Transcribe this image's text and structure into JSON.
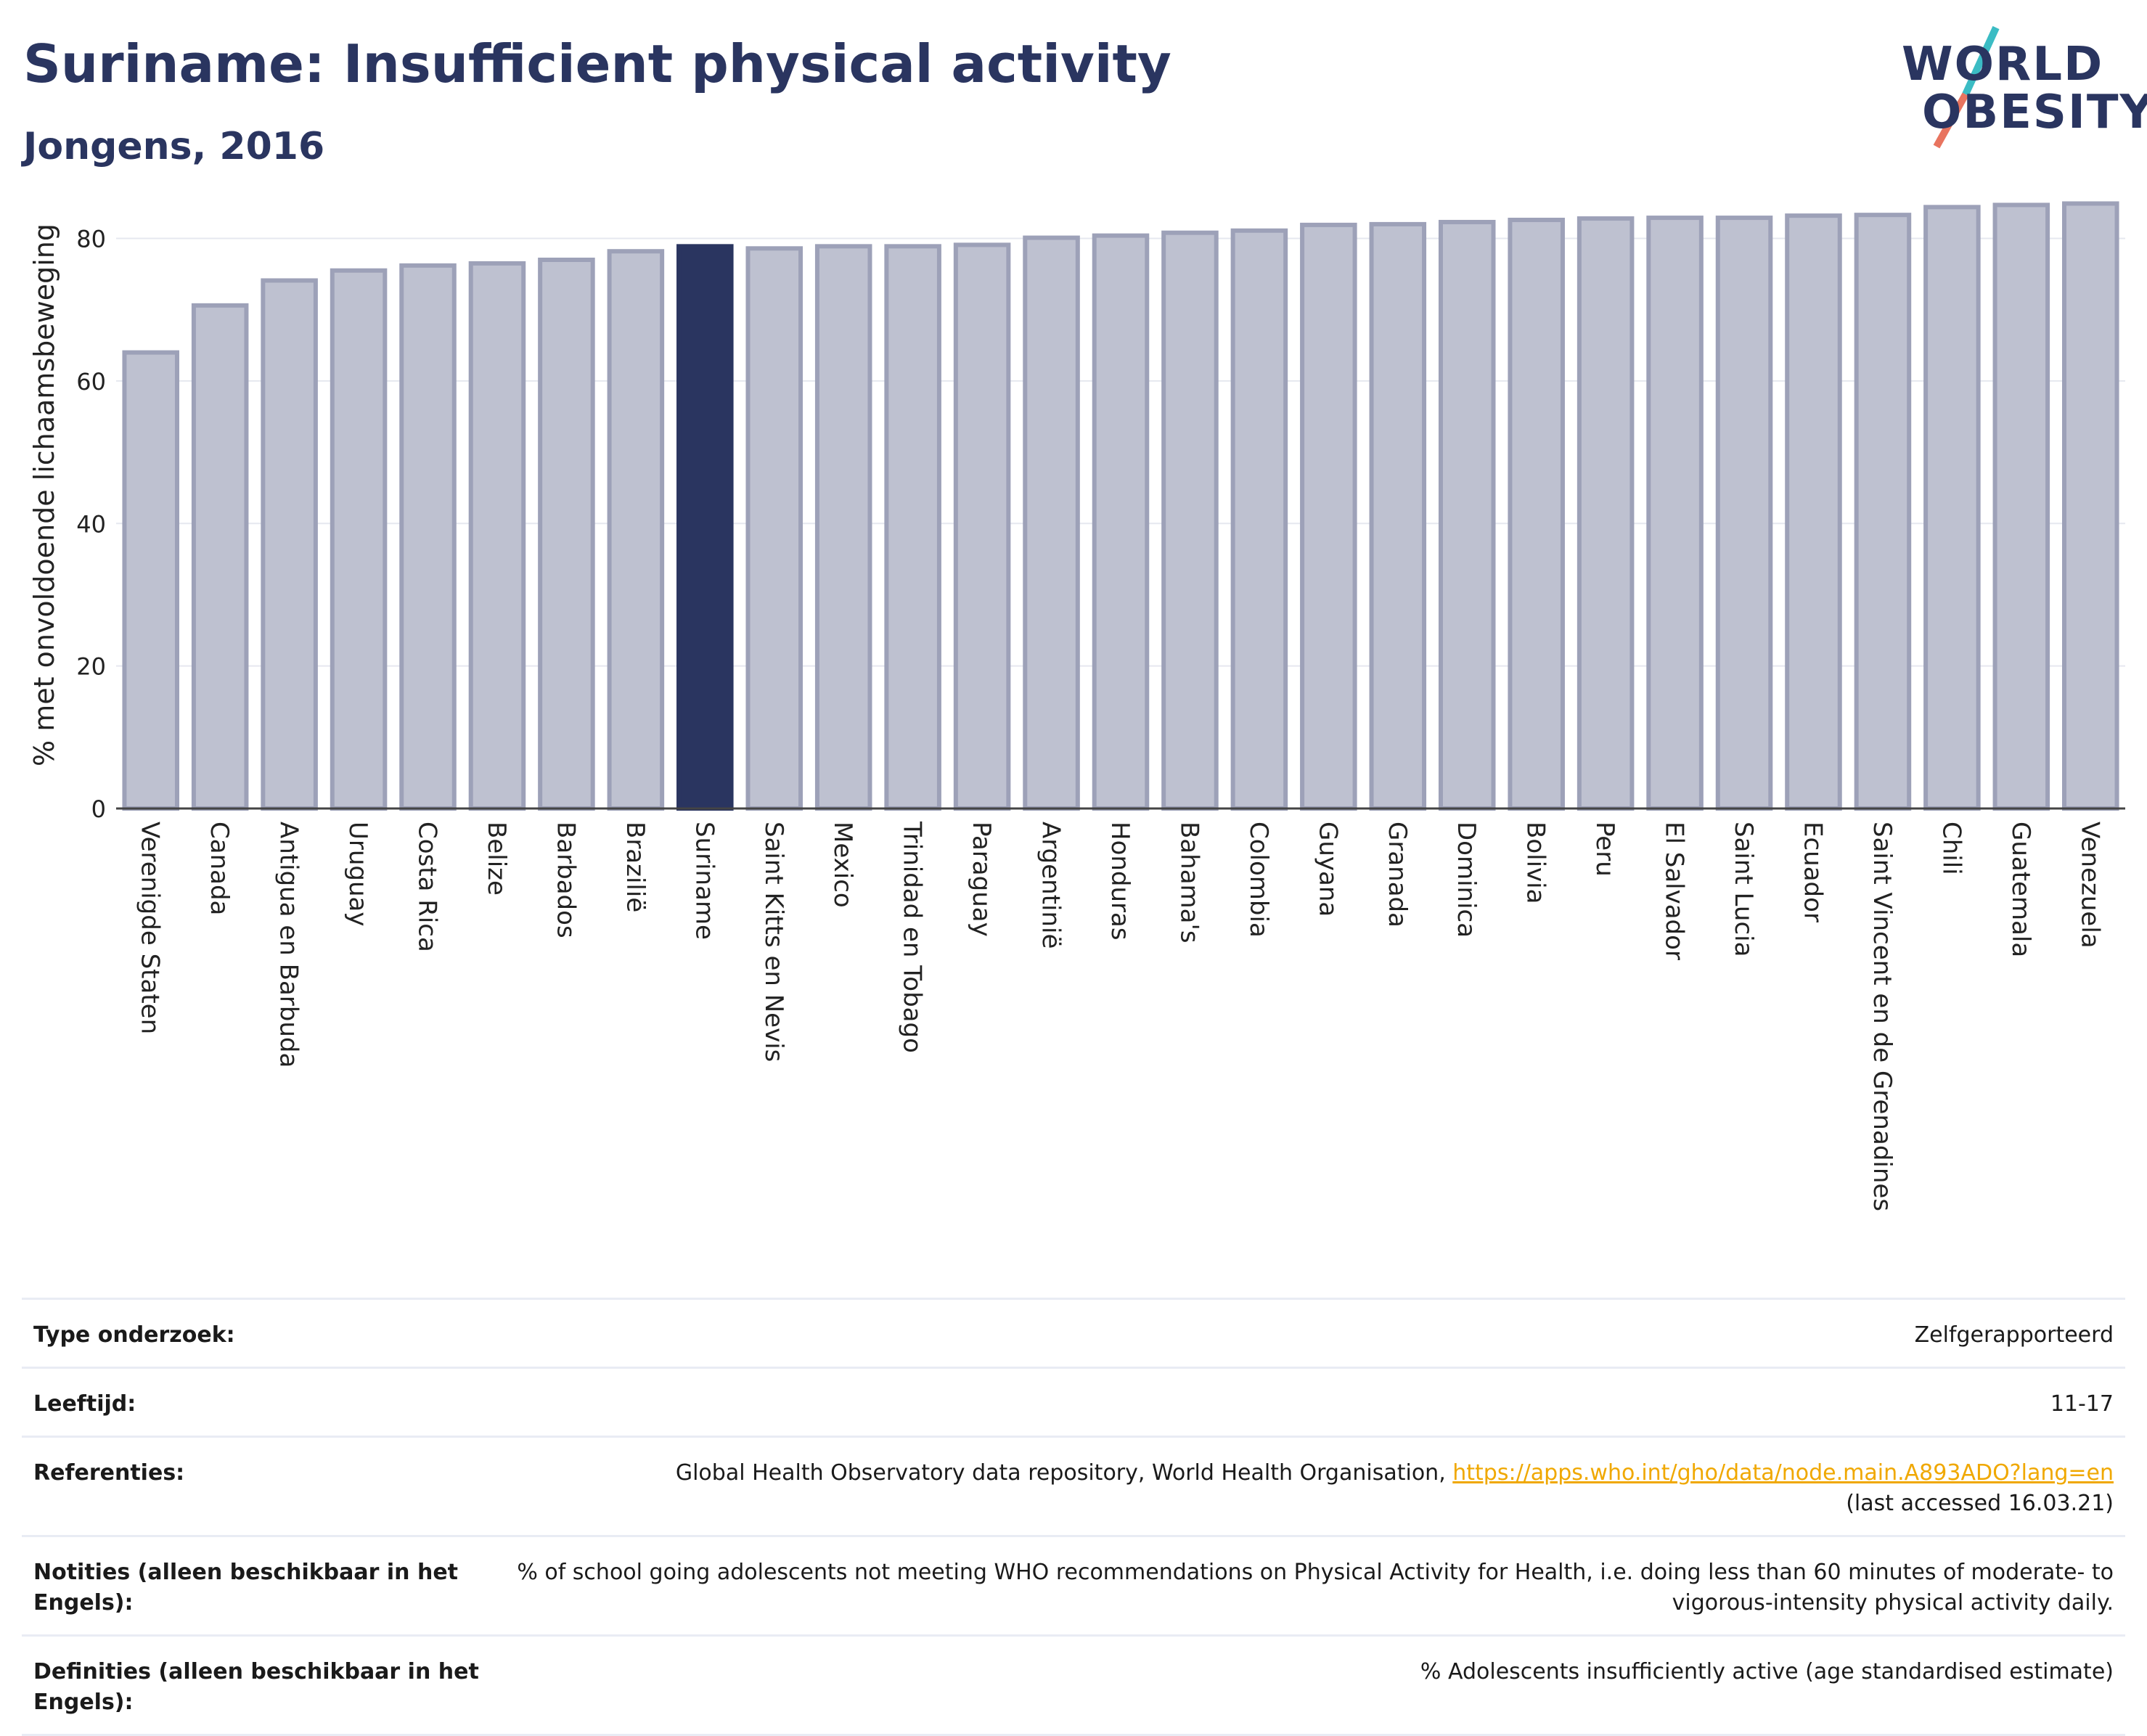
{
  "header": {
    "title": "Suriname: Insufficient physical activity",
    "subtitle": "Jongens, 2016",
    "logo_line1": "WORLD",
    "logo_line2": "OBESITY"
  },
  "colors": {
    "bar": "#bec1d0",
    "bar_border": "#9da1b8",
    "highlight": "#2a3560",
    "grid": "#e6e8ef",
    "title": "#2a3560",
    "link": "#f0a800"
  },
  "chart_data": {
    "type": "bar",
    "ylabel": "% met onvoldoende lichaamsbeweging",
    "ylim": [
      0,
      88
    ],
    "yticks": [
      0,
      20,
      40,
      60,
      80
    ],
    "grid": true,
    "highlight": "Suriname",
    "categories": [
      "Verenigde Staten",
      "Canada",
      "Antigua en Barbuda",
      "Uruguay",
      "Costa Rica",
      "Belize",
      "Barbados",
      "Brazilië",
      "Suriname",
      "Saint Kitts en Nevis",
      "Mexico",
      "Trinidad en Tobago",
      "Paraguay",
      "Argentinië",
      "Honduras",
      "Bahama's",
      "Colombia",
      "Guyana",
      "Granada",
      "Dominica",
      "Bolivia",
      "Peru",
      "El Salvador",
      "Saint Lucia",
      "Ecuador",
      "Saint Vincent en de Grenadines",
      "Chili",
      "Guatemala",
      "Venezuela"
    ],
    "values": [
      64.0,
      70.6,
      74.1,
      75.5,
      76.2,
      76.5,
      77.0,
      78.2,
      78.9,
      78.6,
      78.9,
      78.9,
      79.1,
      80.1,
      80.4,
      80.8,
      81.1,
      81.9,
      82.0,
      82.3,
      82.6,
      82.8,
      82.9,
      82.9,
      83.2,
      83.3,
      84.4,
      84.7,
      84.9
    ]
  },
  "meta": [
    {
      "key": "Type onderzoek:",
      "value": "Zelfgerapporteerd"
    },
    {
      "key": "Leeftijd:",
      "value": "11-17"
    },
    {
      "key": "Referenties:",
      "value": "Global Health Observatory data repository, World Health Organisation, ",
      "link": "https://apps.who.int/gho/data/node.main.A893ADO?lang=en",
      "suffix": "(last accessed 16.03.21)"
    },
    {
      "key": "Notities (alleen beschikbaar in het Engels):",
      "value": "% of school going adolescents not meeting WHO recommendations on Physical Activity for Health, i.e. doing less than 60 minutes of moderate- to vigorous-intensity physical activity daily."
    },
    {
      "key": "Definities (alleen beschikbaar in het Engels):",
      "value": "% Adolescents insufficiently active (age standardised estimate)"
    }
  ]
}
